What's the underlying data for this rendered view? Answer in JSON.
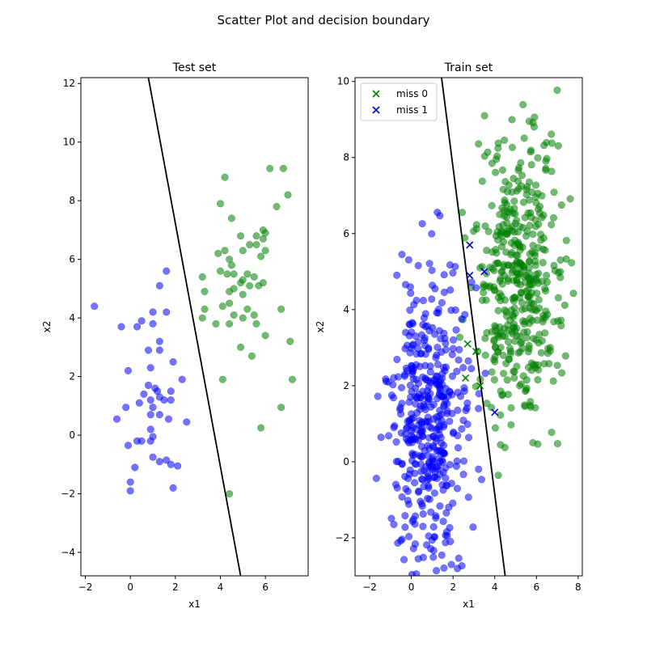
{
  "figure": {
    "title": "Scatter Plot and decision boundary"
  },
  "colors": {
    "class0": "#008000",
    "class1": "#0000ff",
    "boundary": "#000000",
    "miss0": "#008000",
    "miss1": "#0000cc"
  },
  "chart_data": [
    {
      "type": "scatter",
      "title": "Test set",
      "xlabel": "x1",
      "ylabel": "x2",
      "xlim": [
        -2.2,
        7.9
      ],
      "ylim": [
        -4.8,
        12.2
      ],
      "xticks": [
        -2,
        0,
        2,
        4,
        6
      ],
      "yticks": [
        -4,
        -2,
        0,
        2,
        4,
        6,
        8,
        10,
        12
      ],
      "boundary": [
        [
          0.8,
          12.2
        ],
        [
          4.9,
          -4.8
        ]
      ],
      "series": [
        {
          "class": 0,
          "points": [
            [
              4.2,
              8.8
            ],
            [
              6.2,
              9.1
            ],
            [
              6.8,
              9.1
            ],
            [
              7.0,
              8.2
            ],
            [
              4.0,
              7.9
            ],
            [
              6.5,
              7.8
            ],
            [
              4.5,
              7.4
            ],
            [
              5.9,
              7.0
            ],
            [
              6.0,
              6.9
            ],
            [
              5.6,
              6.8
            ],
            [
              5.9,
              6.7
            ],
            [
              4.9,
              6.8
            ],
            [
              5.6,
              6.5
            ],
            [
              5.3,
              6.5
            ],
            [
              4.2,
              6.3
            ],
            [
              3.9,
              6.2
            ],
            [
              5.0,
              6.3
            ],
            [
              4.4,
              6.0
            ],
            [
              5.8,
              6.1
            ],
            [
              4.0,
              5.6
            ],
            [
              4.5,
              5.8
            ],
            [
              4.6,
              5.5
            ],
            [
              5.2,
              5.5
            ],
            [
              3.2,
              5.4
            ],
            [
              4.3,
              5.5
            ],
            [
              5.0,
              5.3
            ],
            [
              5.5,
              5.4
            ],
            [
              4.9,
              5.2
            ],
            [
              5.3,
              5.1
            ],
            [
              5.7,
              5.1
            ],
            [
              5.9,
              5.2
            ],
            [
              6.0,
              6.3
            ],
            [
              3.3,
              4.9
            ],
            [
              4.4,
              4.9
            ],
            [
              4.6,
              5.0
            ],
            [
              5.0,
              4.8
            ],
            [
              3.3,
              4.3
            ],
            [
              4.1,
              4.4
            ],
            [
              4.4,
              4.5
            ],
            [
              5.2,
              4.3
            ],
            [
              6.7,
              4.3
            ],
            [
              3.2,
              4.0
            ],
            [
              5.0,
              4.0
            ],
            [
              4.6,
              4.1
            ],
            [
              5.5,
              4.1
            ],
            [
              5.6,
              3.8
            ],
            [
              3.8,
              3.8
            ],
            [
              4.4,
              3.8
            ],
            [
              6.0,
              3.4
            ],
            [
              7.1,
              3.2
            ],
            [
              4.9,
              3.0
            ],
            [
              5.4,
              2.7
            ],
            [
              4.1,
              1.9
            ],
            [
              7.2,
              1.9
            ],
            [
              6.7,
              0.95
            ],
            [
              5.8,
              0.25
            ],
            [
              4.4,
              -2.0
            ]
          ]
        },
        {
          "class": 1,
          "points": [
            [
              1.6,
              5.6
            ],
            [
              1.3,
              5.1
            ],
            [
              -1.6,
              4.4
            ],
            [
              1.0,
              4.2
            ],
            [
              1.6,
              4.2
            ],
            [
              0.5,
              3.9
            ],
            [
              1.0,
              3.8
            ],
            [
              -0.4,
              3.7
            ],
            [
              0.3,
              3.7
            ],
            [
              0.8,
              2.9
            ],
            [
              1.3,
              2.9
            ],
            [
              1.3,
              3.2
            ],
            [
              -0.1,
              2.2
            ],
            [
              0.9,
              2.3
            ],
            [
              1.9,
              2.5
            ],
            [
              2.3,
              1.9
            ],
            [
              0.8,
              1.7
            ],
            [
              1.1,
              1.6
            ],
            [
              1.2,
              1.5
            ],
            [
              1.3,
              1.3
            ],
            [
              0.6,
              1.4
            ],
            [
              1.8,
              1.5
            ],
            [
              1.8,
              1.2
            ],
            [
              0.9,
              1.2
            ],
            [
              1.5,
              1.2
            ],
            [
              0.4,
              1.1
            ],
            [
              -0.2,
              0.95
            ],
            [
              1.0,
              0.95
            ],
            [
              0.9,
              0.7
            ],
            [
              1.3,
              0.7
            ],
            [
              1.7,
              0.55
            ],
            [
              -0.6,
              0.55
            ],
            [
              2.5,
              0.45
            ],
            [
              0.9,
              0.2
            ],
            [
              0.5,
              -0.2
            ],
            [
              0.3,
              -0.2
            ],
            [
              0.9,
              -0.2
            ],
            [
              1.0,
              -0.05
            ],
            [
              -0.1,
              -0.35
            ],
            [
              1.0,
              -0.75
            ],
            [
              1.3,
              -0.9
            ],
            [
              1.6,
              -0.85
            ],
            [
              1.8,
              -1.0
            ],
            [
              2.1,
              -1.05
            ],
            [
              0.2,
              -1.1
            ],
            [
              0.0,
              -1.6
            ],
            [
              1.9,
              -1.8
            ],
            [
              0.0,
              -1.9
            ]
          ]
        }
      ],
      "misses": []
    },
    {
      "type": "scatter",
      "title": "Train set",
      "xlabel": "x1",
      "ylabel": "x2",
      "xlim": [
        -2.7,
        8.2
      ],
      "ylim": [
        -3.0,
        10.1
      ],
      "xticks": [
        -2,
        0,
        2,
        4,
        6,
        8
      ],
      "yticks": [
        -2,
        0,
        2,
        4,
        6,
        8,
        10
      ],
      "boundary": [
        [
          1.45,
          10.1
        ],
        [
          4.5,
          -3.0
        ]
      ],
      "legend": {
        "position": "upper-left",
        "entries": [
          "miss 0",
          "miss 1"
        ]
      },
      "misses": [
        {
          "label": "miss 0",
          "class": 0,
          "points": [
            [
              2.7,
              3.1
            ],
            [
              3.1,
              2.9
            ],
            [
              2.6,
              2.2
            ],
            [
              3.3,
              2.0
            ]
          ]
        },
        {
          "label": "miss 1",
          "class": 1,
          "points": [
            [
              2.8,
              5.7
            ],
            [
              3.5,
              5.0
            ],
            [
              2.8,
              4.9
            ],
            [
              4.0,
              1.3
            ]
          ]
        }
      ],
      "series": [
        {
          "class": 0,
          "points_generated": true,
          "count": 440,
          "center": [
            5.1,
            4.8
          ],
          "spread": [
            1.1,
            1.85
          ],
          "x_range": [
            2.3,
            8.0
          ],
          "y_range": [
            -1.2,
            10.0
          ]
        },
        {
          "class": 1,
          "points_generated": true,
          "count": 440,
          "center": [
            0.85,
            1.1
          ],
          "spread": [
            0.95,
            1.85
          ],
          "x_range": [
            -1.9,
            3.6
          ],
          "y_range": [
            -3.0,
            8.0
          ]
        }
      ]
    }
  ]
}
